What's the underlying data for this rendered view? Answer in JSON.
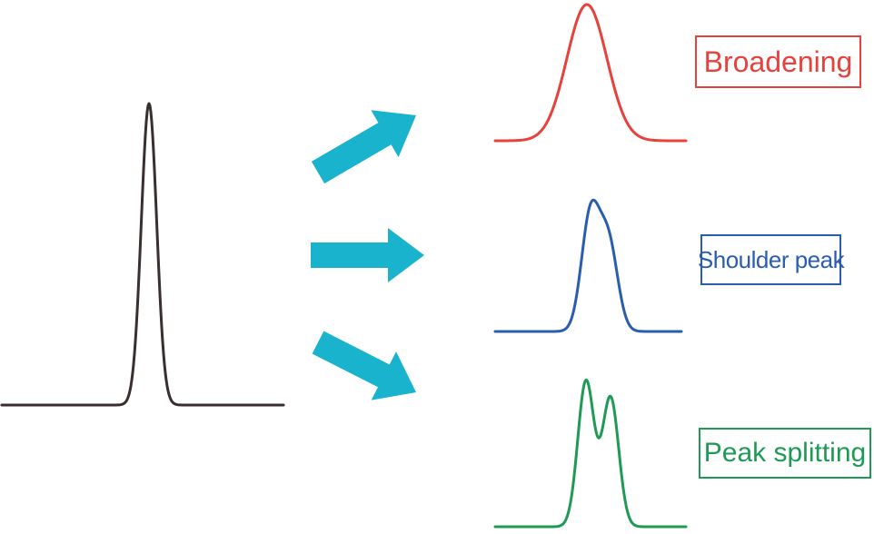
{
  "colors": {
    "original_peak": "#3a2f2f",
    "broadening": "#e8413c",
    "shoulder_peak": "#2a5db0",
    "peak_splitting": "#1e9a55",
    "arrow": "#19b3cd"
  },
  "labels": {
    "broadening": "Broadening",
    "shoulder_peak": "Shoulder peak",
    "peak_splitting": "Peak splitting"
  }
}
